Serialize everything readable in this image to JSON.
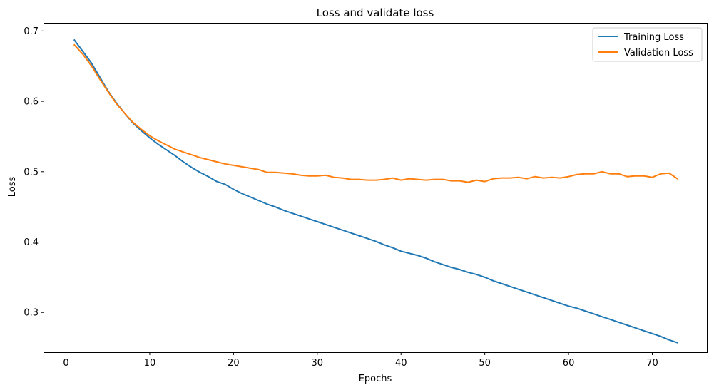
{
  "chart_data": {
    "type": "line",
    "title": "Loss and validate loss",
    "xlabel": "Epochs",
    "ylabel": "Loss",
    "xlim": [
      -2.6,
      76.6
    ],
    "ylim": [
      0.2435,
      0.7115
    ],
    "xticks": [
      0,
      10,
      20,
      30,
      40,
      50,
      60,
      70
    ],
    "yticks": [
      0.3,
      0.4,
      0.5,
      0.6,
      0.7
    ],
    "ytick_labels": [
      "0.3",
      "0.4",
      "0.5",
      "0.6",
      "0.7"
    ],
    "grid": false,
    "legend_position": "top-right",
    "x": [
      1,
      2,
      3,
      4,
      5,
      6,
      7,
      8,
      9,
      10,
      11,
      12,
      13,
      14,
      15,
      16,
      17,
      18,
      19,
      20,
      21,
      22,
      23,
      24,
      25,
      26,
      27,
      28,
      29,
      30,
      31,
      32,
      33,
      34,
      35,
      36,
      37,
      38,
      39,
      40,
      41,
      42,
      43,
      44,
      45,
      46,
      47,
      48,
      49,
      50,
      51,
      52,
      53,
      54,
      55,
      56,
      57,
      58,
      59,
      60,
      61,
      62,
      63,
      64,
      65,
      66,
      67,
      68,
      69,
      70,
      71,
      72,
      73
    ],
    "series": [
      {
        "name": "Training Loss",
        "color": "#1f77b4",
        "values": [
          0.687,
          0.671,
          0.655,
          0.635,
          0.615,
          0.598,
          0.583,
          0.569,
          0.558,
          0.548,
          0.539,
          0.531,
          0.523,
          0.514,
          0.506,
          0.499,
          0.493,
          0.486,
          0.482,
          0.475,
          0.469,
          0.464,
          0.459,
          0.454,
          0.45,
          0.445,
          0.441,
          0.437,
          0.433,
          0.429,
          0.425,
          0.421,
          0.417,
          0.413,
          0.409,
          0.405,
          0.401,
          0.396,
          0.392,
          0.387,
          0.384,
          0.381,
          0.377,
          0.372,
          0.368,
          0.364,
          0.361,
          0.357,
          0.354,
          0.35,
          0.345,
          0.341,
          0.337,
          0.333,
          0.329,
          0.325,
          0.321,
          0.317,
          0.313,
          0.309,
          0.306,
          0.302,
          0.298,
          0.294,
          0.29,
          0.286,
          0.282,
          0.278,
          0.274,
          0.27,
          0.266,
          0.261,
          0.257
        ]
      },
      {
        "name": "Validation Loss",
        "color": "#ff7f0e",
        "values": [
          0.68,
          0.667,
          0.651,
          0.632,
          0.614,
          0.597,
          0.583,
          0.57,
          0.56,
          0.551,
          0.544,
          0.538,
          0.532,
          0.528,
          0.524,
          0.52,
          0.517,
          0.514,
          0.511,
          0.509,
          0.507,
          0.505,
          0.503,
          0.499,
          0.499,
          0.498,
          0.497,
          0.495,
          0.494,
          0.494,
          0.495,
          0.492,
          0.491,
          0.489,
          0.489,
          0.488,
          0.488,
          0.489,
          0.491,
          0.488,
          0.49,
          0.489,
          0.488,
          0.489,
          0.489,
          0.487,
          0.487,
          0.485,
          0.488,
          0.486,
          0.49,
          0.491,
          0.491,
          0.492,
          0.49,
          0.493,
          0.491,
          0.492,
          0.491,
          0.493,
          0.496,
          0.497,
          0.497,
          0.5,
          0.497,
          0.497,
          0.493,
          0.494,
          0.494,
          0.492,
          0.497,
          0.498,
          0.49
        ]
      }
    ]
  }
}
